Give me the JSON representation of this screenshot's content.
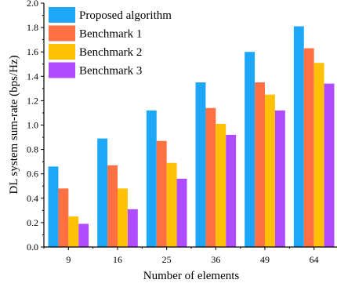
{
  "chart_data": {
    "type": "bar",
    "title": "",
    "xlabel": "Number of elements",
    "ylabel": "DL system sum-rate (bps/Hz)",
    "categories": [
      "9",
      "16",
      "25",
      "36",
      "49",
      "64"
    ],
    "ylim": [
      0,
      2.0
    ],
    "yticks": [
      "0.0",
      "0.2",
      "0.4",
      "0.6",
      "0.8",
      "1.0",
      "1.2",
      "1.4",
      "1.6",
      "1.8",
      "2.0"
    ],
    "grid": false,
    "legend_position": "top-left",
    "series": [
      {
        "name": "Proposed algorithm",
        "color": "#1ea7f8",
        "values": [
          0.66,
          0.89,
          1.12,
          1.35,
          1.6,
          1.81
        ]
      },
      {
        "name": "Benchmark 1",
        "color": "#ff7043",
        "values": [
          0.48,
          0.67,
          0.87,
          1.14,
          1.35,
          1.63
        ]
      },
      {
        "name": "Benchmark 2",
        "color": "#ffc107",
        "values": [
          0.25,
          0.48,
          0.69,
          1.01,
          1.25,
          1.51
        ]
      },
      {
        "name": "Benchmark 3",
        "color": "#b04cff",
        "values": [
          0.19,
          0.31,
          0.56,
          0.92,
          1.12,
          1.34
        ]
      }
    ]
  }
}
